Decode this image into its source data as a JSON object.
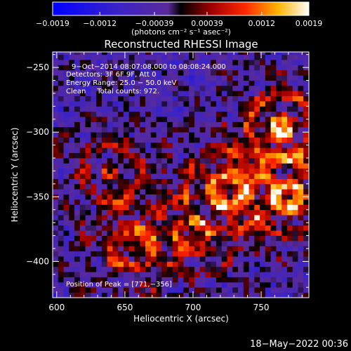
{
  "chart_data": {
    "type": "heatmap",
    "title": "Reconstructed RHESSI Image",
    "xlabel": "Heliocentric X (arcsec)",
    "ylabel": "Heliocentric Y (arcsec)",
    "xlim": [
      597,
      785
    ],
    "ylim": [
      -428,
      -238
    ],
    "xticks": [
      {
        "v": 600,
        "label": "600"
      },
      {
        "v": 650,
        "label": "650"
      },
      {
        "v": 700,
        "label": "700"
      },
      {
        "v": 750,
        "label": "750"
      }
    ],
    "yticks": [
      {
        "v": -250,
        "label": "−250"
      },
      {
        "v": -300,
        "label": "−300"
      },
      {
        "v": -350,
        "label": "−350"
      },
      {
        "v": -400,
        "label": "−400"
      }
    ],
    "colorbar": {
      "min": -0.0019,
      "max": 0.0019,
      "ticks": [
        {
          "v": -0.0019,
          "label": "−0.0019"
        },
        {
          "v": -0.0012,
          "label": "−0.0012"
        },
        {
          "v": -0.00039,
          "label": "−0.00039"
        },
        {
          "v": 0.00039,
          "label": "0.00039"
        },
        {
          "v": 0.0012,
          "label": "0.0012"
        },
        {
          "v": 0.0019,
          "label": "0.0019"
        }
      ],
      "units_label": "(photons cm⁻² s⁻¹ asec⁻²)"
    },
    "annotations": {
      "line1": "9−Oct−2014 08:07:08.000 to 08:08:24.000",
      "line2": "Detectors: 3F 6F 9F, Att 0",
      "line3": "Energy Range: 25.0 − 50.0 keV",
      "line4": "Clean     Total counts: 972.",
      "peak": "Position of Peak = [771,−356]"
    },
    "peak": {
      "x": 771,
      "y": -356
    },
    "bright_regions": [
      {
        "x": 765,
        "y": -295,
        "amplitude": 0.0019
      },
      {
        "x": 770,
        "y": -350,
        "amplitude": 0.0019
      },
      {
        "x": 725,
        "y": -345,
        "amplitude": 0.0017
      },
      {
        "x": 640,
        "y": -330,
        "amplitude": 0.0012
      },
      {
        "x": 655,
        "y": -390,
        "amplitude": 0.0014
      },
      {
        "x": 700,
        "y": -380,
        "amplitude": 0.001
      }
    ],
    "timestamp": "18−May−2022 00:36"
  }
}
